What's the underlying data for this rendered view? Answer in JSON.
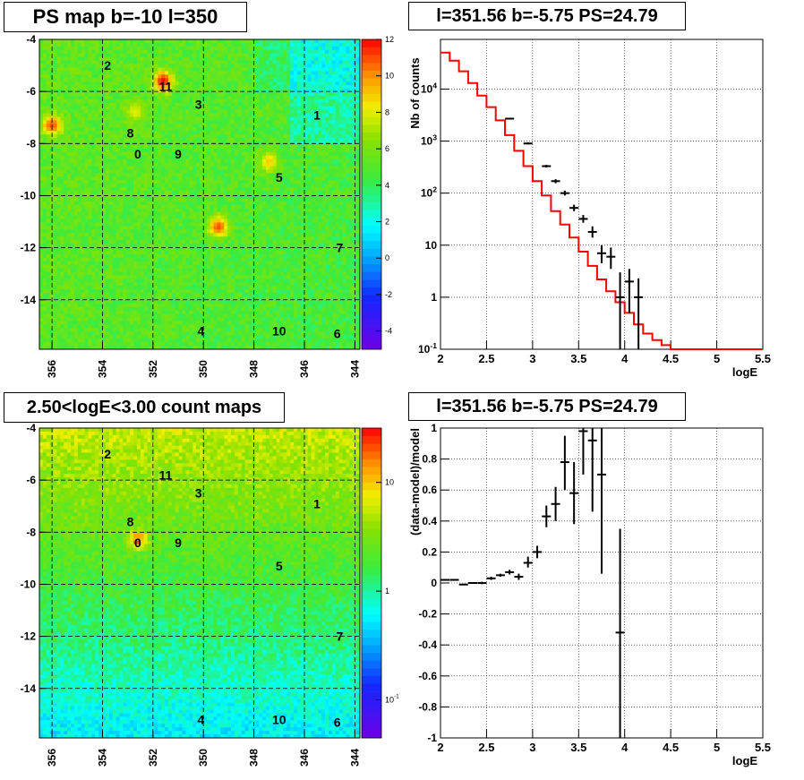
{
  "chart_data": [
    {
      "type": "heatmap",
      "title": "PS map b=-10 l=350",
      "x_ticks": [
        "356",
        "354",
        "352",
        "350",
        "348",
        "346",
        "344"
      ],
      "x_tick_values": [
        356,
        354,
        352,
        350,
        348,
        346,
        344
      ],
      "xlim": [
        356.5,
        343.8
      ],
      "y_ticks": [
        "-4",
        "-6",
        "-8",
        "-10",
        "-12",
        "-14"
      ],
      "y_tick_values": [
        -4,
        -6,
        -8,
        -10,
        -12,
        -14
      ],
      "ylim": [
        -15.9,
        -4
      ],
      "colorbar_ticks": [
        "12",
        "10",
        "8",
        "6",
        "4",
        "2",
        "0",
        "-2",
        "-4"
      ],
      "colorbar_tick_values": [
        12,
        10,
        8,
        6,
        4,
        2,
        0,
        -2,
        -4
      ],
      "colorbar_range": [
        -5,
        12
      ],
      "grid": true,
      "hotspots": [
        {
          "l": 351.6,
          "b": -5.6,
          "level": 12
        },
        {
          "l": 356.0,
          "b": -7.3,
          "level": 11
        },
        {
          "l": 349.4,
          "b": -11.2,
          "level": 11
        },
        {
          "l": 352.7,
          "b": -6.8,
          "level": 8
        },
        {
          "l": 347.4,
          "b": -8.7,
          "level": 9
        }
      ],
      "sources": [
        {
          "label": "2",
          "l": 353.8,
          "b": -5.0
        },
        {
          "label": "11",
          "l": 351.5,
          "b": -5.8
        },
        {
          "label": "3",
          "l": 350.2,
          "b": -6.5
        },
        {
          "label": "1",
          "l": 345.5,
          "b": -6.9
        },
        {
          "label": "8",
          "l": 352.9,
          "b": -7.6
        },
        {
          "label": "0",
          "l": 352.6,
          "b": -8.4
        },
        {
          "label": "9",
          "l": 351.0,
          "b": -8.4
        },
        {
          "label": "5",
          "l": 347.0,
          "b": -9.3
        },
        {
          "label": "7",
          "l": 344.6,
          "b": -12.0
        },
        {
          "label": "4",
          "l": 350.1,
          "b": -15.2
        },
        {
          "label": "10",
          "l": 347.0,
          "b": -15.2
        },
        {
          "label": "6",
          "l": 344.7,
          "b": -15.3
        }
      ]
    },
    {
      "type": "line",
      "title": "l=351.56 b=-5.75 PS=24.79",
      "xlabel": "logE",
      "ylabel": "Nb of counts",
      "xlim": [
        2,
        5.5
      ],
      "ylim": [
        0.1,
        90000
      ],
      "y_scale": "log",
      "x_ticks": [
        "2",
        "2.5",
        "3",
        "3.5",
        "4",
        "4.5",
        "5",
        "5.5"
      ],
      "x_tick_values": [
        2,
        2.5,
        3,
        3.5,
        4,
        4.5,
        5,
        5.5
      ],
      "y_ticks": [
        "10^{-1}",
        "1",
        "10",
        "10^{2}",
        "10^{3}",
        "10^{4}"
      ],
      "y_tick_values": [
        0.1,
        1,
        10,
        100,
        1000,
        10000
      ],
      "grid": true,
      "model_step": {
        "bin_edges": [
          2.0,
          2.1,
          2.2,
          2.3,
          2.4,
          2.5,
          2.6,
          2.7,
          2.8,
          2.9,
          3.0,
          3.1,
          3.2,
          3.3,
          3.4,
          3.5,
          3.6,
          3.7,
          3.8,
          3.9,
          4.0,
          4.1,
          4.2,
          4.3,
          4.4,
          4.5,
          4.6,
          4.7,
          4.8,
          4.9,
          5.0,
          5.1,
          5.2,
          5.3,
          5.4,
          5.5
        ],
        "values": [
          50000,
          35000,
          22000,
          13000,
          7500,
          4500,
          2500,
          1300,
          650,
          330,
          170,
          90,
          45,
          25,
          14,
          7.5,
          4,
          2.2,
          1.3,
          0.8,
          0.5,
          0.3,
          0.2,
          0.15,
          0.12,
          0.1,
          0.1,
          0.1,
          0.1,
          0.1,
          0.1,
          0.1,
          0.1,
          0.1,
          0.1
        ]
      },
      "data_points": [
        {
          "x": 2.75,
          "y": 2700,
          "lo": 2600,
          "hi": 2800
        },
        {
          "x": 2.95,
          "y": 900,
          "lo": 860,
          "hi": 950
        },
        {
          "x": 3.15,
          "y": 330,
          "lo": 310,
          "hi": 350
        },
        {
          "x": 3.25,
          "y": 170,
          "lo": 155,
          "hi": 185
        },
        {
          "x": 3.35,
          "y": 100,
          "lo": 90,
          "hi": 112
        },
        {
          "x": 3.45,
          "y": 52,
          "lo": 45,
          "hi": 60
        },
        {
          "x": 3.55,
          "y": 32,
          "lo": 27,
          "hi": 38
        },
        {
          "x": 3.65,
          "y": 18,
          "lo": 14,
          "hi": 23
        },
        {
          "x": 3.75,
          "y": 7,
          "lo": 4.5,
          "hi": 10
        },
        {
          "x": 3.85,
          "y": 6,
          "lo": 3.5,
          "hi": 9
        },
        {
          "x": 3.95,
          "y": 1,
          "lo": 0.1,
          "hi": 3
        },
        {
          "x": 4.05,
          "y": 2,
          "lo": 0.5,
          "hi": 3.5
        },
        {
          "x": 4.15,
          "y": 1,
          "lo": 0.1,
          "hi": 2.3
        }
      ]
    },
    {
      "type": "heatmap",
      "title": "2.50<logE<3.00 count maps",
      "x_ticks": [
        "356",
        "354",
        "352",
        "350",
        "348",
        "346",
        "344"
      ],
      "x_tick_values": [
        356,
        354,
        352,
        350,
        348,
        346,
        344
      ],
      "xlim": [
        356.5,
        343.8
      ],
      "y_ticks": [
        "-4",
        "-6",
        "-8",
        "-10",
        "-12",
        "-14"
      ],
      "y_tick_values": [
        -4,
        -6,
        -8,
        -10,
        -12,
        -14
      ],
      "ylim": [
        -15.9,
        -4
      ],
      "colorbar_scale": "log",
      "colorbar_ticks": [
        "10",
        "1",
        "10^{-1}"
      ],
      "colorbar_tick_values": [
        10,
        1,
        0.1
      ],
      "grid": true,
      "hotspots": [
        {
          "l": 352.6,
          "b": -8.3,
          "level": 30
        }
      ],
      "sources": [
        {
          "label": "2",
          "l": 353.8,
          "b": -5.0
        },
        {
          "label": "11",
          "l": 351.5,
          "b": -5.8
        },
        {
          "label": "3",
          "l": 350.2,
          "b": -6.5
        },
        {
          "label": "1",
          "l": 345.5,
          "b": -6.9
        },
        {
          "label": "8",
          "l": 352.9,
          "b": -7.6
        },
        {
          "label": "0",
          "l": 352.6,
          "b": -8.4
        },
        {
          "label": "9",
          "l": 351.0,
          "b": -8.4
        },
        {
          "label": "5",
          "l": 347.0,
          "b": -9.3
        },
        {
          "label": "7",
          "l": 344.6,
          "b": -12.0
        },
        {
          "label": "4",
          "l": 350.1,
          "b": -15.2
        },
        {
          "label": "10",
          "l": 347.0,
          "b": -15.2
        },
        {
          "label": "6",
          "l": 344.7,
          "b": -15.3
        }
      ]
    },
    {
      "type": "scatter",
      "title": "l=351.56 b=-5.75 PS=24.79",
      "xlabel": "logE",
      "ylabel": "(data-model)/model",
      "xlim": [
        2,
        5.5
      ],
      "ylim": [
        -1,
        1
      ],
      "x_ticks": [
        "2",
        "2.5",
        "3",
        "3.5",
        "4",
        "4.5",
        "5",
        "5.5"
      ],
      "x_tick_values": [
        2,
        2.5,
        3,
        3.5,
        4,
        4.5,
        5,
        5.5
      ],
      "y_ticks": [
        "-1",
        "-0.8",
        "-0.6",
        "-0.4",
        "-0.2",
        "0",
        "0.2",
        "0.4",
        "0.6",
        "0.8",
        "1"
      ],
      "y_tick_values": [
        -1,
        -0.8,
        -0.6,
        -0.4,
        -0.2,
        0,
        0.2,
        0.4,
        0.6,
        0.8,
        1
      ],
      "grid": true,
      "data_points": [
        {
          "x": 2.05,
          "y": 0.02,
          "lo": 0.015,
          "hi": 0.025
        },
        {
          "x": 2.15,
          "y": 0.02,
          "lo": 0.015,
          "hi": 0.025
        },
        {
          "x": 2.25,
          "y": -0.01,
          "lo": -0.015,
          "hi": -0.005
        },
        {
          "x": 2.35,
          "y": 0.0,
          "lo": -0.005,
          "hi": 0.005
        },
        {
          "x": 2.45,
          "y": 0.0,
          "lo": -0.008,
          "hi": 0.008
        },
        {
          "x": 2.55,
          "y": 0.03,
          "lo": 0.02,
          "hi": 0.04
        },
        {
          "x": 2.65,
          "y": 0.05,
          "lo": 0.04,
          "hi": 0.06
        },
        {
          "x": 2.75,
          "y": 0.07,
          "lo": 0.055,
          "hi": 0.085
        },
        {
          "x": 2.85,
          "y": 0.04,
          "lo": 0.02,
          "hi": 0.06
        },
        {
          "x": 2.95,
          "y": 0.13,
          "lo": 0.1,
          "hi": 0.17
        },
        {
          "x": 3.05,
          "y": 0.2,
          "lo": 0.16,
          "hi": 0.24
        },
        {
          "x": 3.15,
          "y": 0.43,
          "lo": 0.36,
          "hi": 0.5
        },
        {
          "x": 3.25,
          "y": 0.51,
          "lo": 0.4,
          "hi": 0.62
        },
        {
          "x": 3.35,
          "y": 0.78,
          "lo": 0.6,
          "hi": 0.95
        },
        {
          "x": 3.45,
          "y": 0.58,
          "lo": 0.38,
          "hi": 0.78
        },
        {
          "x": 3.55,
          "y": 0.98,
          "lo": 0.7,
          "hi": 1.0
        },
        {
          "x": 3.65,
          "y": 0.92,
          "lo": 0.46,
          "hi": 1.0
        },
        {
          "x": 3.75,
          "y": 0.7,
          "lo": 0.06,
          "hi": 1.0
        },
        {
          "x": 3.95,
          "y": -0.32,
          "lo": -1.0,
          "hi": 0.35
        }
      ]
    }
  ]
}
